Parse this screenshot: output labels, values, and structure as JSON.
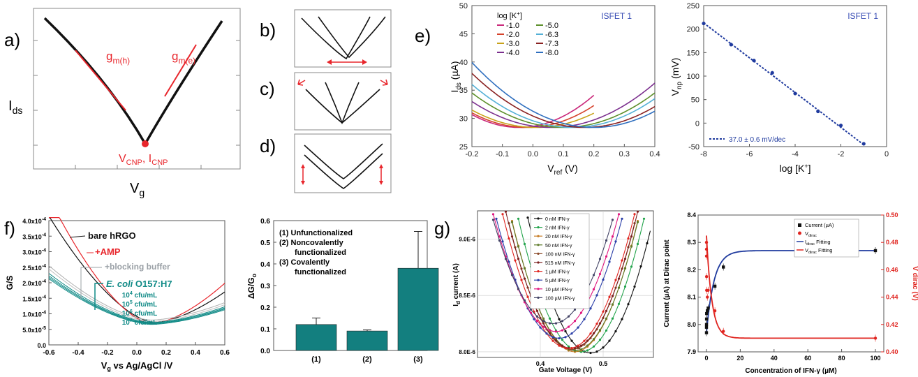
{
  "panel_labels": {
    "a": "a)",
    "b": "b)",
    "c": "c)",
    "d": "d)",
    "e": "e)",
    "f": "f)",
    "g": "g)"
  },
  "colors": {
    "red": "#e8262c",
    "teal": "#0f8a86",
    "blue": "#1f3a9e",
    "isfet_blue": "#3b4fb5",
    "gray": "#9aa0a6",
    "black": "#111111",
    "bar": "#137f7f"
  },
  "chart_data": [
    {
      "id": "a",
      "type": "line",
      "xlabel": "V",
      "xlabel_sub": "g",
      "ylabel": "I",
      "ylabel_sub": "ds",
      "annotations": {
        "gmh": "g",
        "gmh_sub": "m(h)",
        "gme": "g",
        "gme_sub": "m(e)",
        "cnp_v": "V",
        "cnp_v_sub": "CNP",
        "cnp_sep": ", ",
        "cnp_i": "I",
        "cnp_i_sub": "CNP"
      },
      "series": [
        {
          "x": [
            0,
            0.1,
            0.2,
            0.3,
            0.4,
            0.5,
            0.6,
            0.7,
            0.8,
            0.9,
            1.0
          ],
          "y": [
            0.93,
            0.82,
            0.68,
            0.52,
            0.33,
            0.0,
            0.31,
            0.5,
            0.66,
            0.8,
            0.92
          ]
        }
      ]
    },
    {
      "id": "b",
      "type": "line",
      "description_marks": "shift"
    },
    {
      "id": "c",
      "type": "line",
      "description_marks": "widen"
    },
    {
      "id": "d",
      "type": "line",
      "description_marks": "vertical-shift"
    },
    {
      "id": "e_left",
      "type": "line",
      "title": "ISFET 1",
      "legend_title": "log [K",
      "legend_title_sup": "+",
      "legend_title_end": "]",
      "xlabel": "V",
      "xlabel_sub": "ref",
      "xlabel_unit": " (V)",
      "ylabel": "I",
      "ylabel_sub": "ds",
      "ylabel_unit": " (µA)",
      "xlim": [
        -0.2,
        0.4
      ],
      "ylim": [
        25,
        50
      ],
      "xticks": [
        "-0.2",
        "-0.1",
        "0.0",
        "0.1",
        "0.2",
        "0.3",
        "0.4"
      ],
      "yticks": [
        "25",
        "30",
        "35",
        "40",
        "45",
        "50"
      ],
      "series": [
        {
          "name": "-1.0",
          "color": "#c9277a",
          "vmin": -0.045,
          "end": 0.2,
          "curv": 95
        },
        {
          "name": "-2.0",
          "color": "#d5422b",
          "vmin": -0.02,
          "end": 0.2,
          "curv": 80
        },
        {
          "name": "-3.0",
          "color": "#c8a21a",
          "vmin": 0.01,
          "end": 0.2,
          "curv": 70
        },
        {
          "name": "-4.0",
          "color": "#7b2f8e",
          "vmin": 0.06,
          "end": 0.4,
          "curv": 68
        },
        {
          "name": "-5.0",
          "color": "#5c8f2a",
          "vmin": 0.1,
          "end": 0.4,
          "curv": 68
        },
        {
          "name": "-6.3",
          "color": "#54b0d6",
          "vmin": 0.13,
          "end": 0.4,
          "curv": 70
        },
        {
          "name": "-7.3",
          "color": "#8a2222",
          "vmin": 0.17,
          "end": 0.4,
          "curv": 70
        },
        {
          "name": "-8.0",
          "color": "#2f6fbf",
          "vmin": 0.2,
          "end": 0.4,
          "curv": 72
        }
      ]
    },
    {
      "id": "e_right",
      "type": "scatter",
      "title": "ISFET 1",
      "xlabel": "log [K",
      "xlabel_sup": "+",
      "xlabel_end": "]",
      "ylabel": "V",
      "ylabel_sub": "np",
      "ylabel_unit": " (mV)",
      "xlim": [
        -8,
        0
      ],
      "ylim": [
        -50,
        250
      ],
      "xticks": [
        "-8",
        "-6",
        "-4",
        "-2",
        "0"
      ],
      "yticks": [
        "-50",
        "0",
        "50",
        "100",
        "150",
        "200",
        "250"
      ],
      "legend": "37.0 ± 0.6 mV/dec",
      "x": [
        -8.0,
        -6.8,
        -5.8,
        -5.0,
        -4.0,
        -3.0,
        -2.0,
        -1.0
      ],
      "y": [
        212,
        167,
        133,
        107,
        63,
        25,
        -5,
        -44
      ]
    },
    {
      "id": "f_left",
      "type": "line",
      "xlabel": "V",
      "xlabel_sub": "g",
      "xlabel_rest": " vs Ag/AgCl /V",
      "ylabel": "G/S",
      "xlim": [
        -0.6,
        0.6
      ],
      "ylim": [
        0,
        0.0004
      ],
      "xticks": [
        "-0.6",
        "-0.4",
        "-0.2",
        "0.0",
        "0.2",
        "0.4",
        "0.6"
      ],
      "yticks": [
        "0.0",
        "5.0x10",
        "1.0x10",
        "1.5x10",
        "2.0x10",
        "2.5x10",
        "3.0x10",
        "3.5x10",
        "4.0x10"
      ],
      "ytick_exp": [
        "",
        "-5",
        "-4",
        "-4",
        "-4",
        "-4",
        "-4",
        "-4",
        "-4"
      ],
      "labels": {
        "bare": "bare hRGO",
        "amp": "+AMP",
        "block": "+blocking buffer",
        "ecoli": "E. coli",
        "strain": " O157:H7",
        "conc": [
          "10",
          "10",
          "10",
          "10"
        ],
        "conc_exp": [
          "4",
          "5",
          "6",
          "7"
        ],
        "conc_unit": " cfu/mL"
      }
    },
    {
      "id": "f_right",
      "type": "bar",
      "ylabel": "ΔG/G",
      "ylabel_sub": "o",
      "categories": [
        "(1)",
        "(2)",
        "(3)"
      ],
      "values": [
        0.12,
        0.09,
        0.38
      ],
      "errors": [
        0.03,
        0.005,
        0.17
      ],
      "ylim": [
        0,
        0.6
      ],
      "yticks": [
        "0.0",
        "0.1",
        "0.2",
        "0.3",
        "0.4",
        "0.5",
        "0.6"
      ],
      "legend": [
        "(1) Unfunctionalized",
        "(2) Noncovalently",
        "functionalized",
        "(3) Covalently",
        "functionalized"
      ]
    },
    {
      "id": "g_left",
      "type": "line",
      "xlabel": "Gate Voltage (V)",
      "ylabel": "I",
      "ylabel_sub": "d",
      "ylabel_rest": " current (A)",
      "xlim": [
        0.3,
        0.58
      ],
      "ylim": [
        7.95e-06,
        9.25e-06
      ],
      "xticks": [
        "0.4",
        "0.5"
      ],
      "yticks": [
        "8.0E-6",
        "8.5E-6",
        "9.0E-6"
      ],
      "series": [
        {
          "name": "0 nM IFN-γ",
          "color": "#111111",
          "vmin": 0.48,
          "imin": 7.99
        },
        {
          "name": "2 nM IFN-γ",
          "color": "#21a34a",
          "vmin": 0.465,
          "imin": 8.0
        },
        {
          "name": "20 nM IFN-γ",
          "color": "#c77b22",
          "vmin": 0.455,
          "imin": 8.0
        },
        {
          "name": "50 nM IFN-γ",
          "color": "#5e7a2a",
          "vmin": 0.455,
          "imin": 8.01
        },
        {
          "name": "100 nM IFN-γ",
          "color": "#8b4b2a",
          "vmin": 0.45,
          "imin": 8.02
        },
        {
          "name": "515 nM IFN-γ",
          "color": "#7a1e1e",
          "vmin": 0.45,
          "imin": 8.03
        },
        {
          "name": "1 µM IFN-γ",
          "color": "#e0241f",
          "vmin": 0.445,
          "imin": 8.03
        },
        {
          "name": "5 µM IFN-γ",
          "color": "#2a3ea8",
          "vmin": 0.43,
          "imin": 8.12
        },
        {
          "name": "10 µM IFN-γ",
          "color": "#e0177f",
          "vmin": 0.425,
          "imin": 8.18
        },
        {
          "name": "100 µM IFN-γ",
          "color": "#444466",
          "vmin": 0.42,
          "imin": 8.25
        }
      ]
    },
    {
      "id": "g_right",
      "type": "scatter",
      "xlabel": "Concentration of IFN-γ (µM)",
      "ylabel": "Current (µA) at Dirac point",
      "y2label": "V dirac (V)",
      "xlim": [
        0,
        100
      ],
      "ylim": [
        7.9,
        8.4
      ],
      "y2lim": [
        0.4,
        0.5
      ],
      "xticks": [
        "0",
        "20",
        "40",
        "60",
        "80",
        "100"
      ],
      "yticks": [
        "7.9",
        "8.0",
        "8.1",
        "8.2",
        "8.3",
        "8.4"
      ],
      "y2ticks": [
        "0.40",
        "0.42",
        "0.44",
        "0.46",
        "0.48",
        "0.50"
      ],
      "legend": {
        "current": "Current (µA)",
        "vdirac": "V",
        "vdirac_sub": "dirac",
        "fit1": "I",
        "fit1_sub": "dirac",
        "fit1_rest": " Fitting",
        "fit2": "V",
        "fit2_sub": "dirac",
        "fit2_rest": " Fitting"
      },
      "current": {
        "x": [
          0,
          0.002,
          0.02,
          0.05,
          0.1,
          0.515,
          1,
          5,
          10,
          100
        ],
        "y": [
          7.97,
          7.99,
          8.0,
          8.02,
          8.04,
          8.05,
          8.06,
          8.14,
          8.21,
          8.27
        ]
      },
      "vdirac": {
        "x": [
          0,
          0.002,
          0.02,
          0.05,
          0.1,
          0.515,
          1,
          5,
          10,
          100
        ],
        "y": [
          0.48,
          0.475,
          0.47,
          0.455,
          0.445,
          0.44,
          0.445,
          0.43,
          0.415,
          0.41
        ]
      }
    }
  ]
}
